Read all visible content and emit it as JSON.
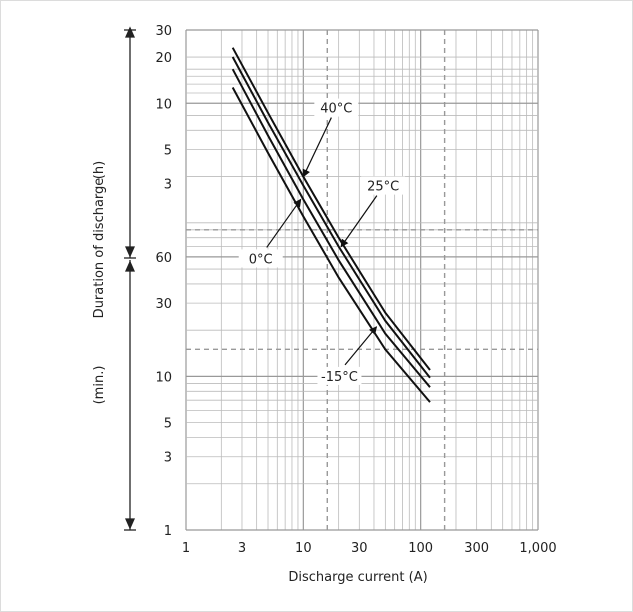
{
  "chart_data": {
    "type": "line",
    "x_scale": "log",
    "y_scale": "log",
    "xlabel": "Discharge current (A)",
    "ylabel": "Duration of discharge",
    "y_unit_upper": "(h)",
    "y_unit_lower": "(min.)",
    "x_ticks": [
      "1",
      "3",
      "10",
      "30",
      "100",
      "300",
      "1,000"
    ],
    "y_ticks_hours": [
      "30",
      "20",
      "10",
      "5",
      "3"
    ],
    "y_ticks_minutes": [
      "60",
      "30",
      "10",
      "5",
      "3",
      "1"
    ],
    "xlim": [
      1,
      1000
    ],
    "ylim_minutes": [
      1,
      1800
    ],
    "grid": true,
    "dashed_x": [
      16,
      160
    ],
    "dashed_y_minutes": [
      90,
      15
    ],
    "series": [
      {
        "name": "40°C",
        "x": [
          2.5,
          5,
          10,
          20,
          50,
          120
        ],
        "y_minutes": [
          1380,
          520,
          200,
          80,
          26,
          11
        ]
      },
      {
        "name": "25°C",
        "x": [
          2.5,
          5,
          10,
          20,
          50,
          120
        ],
        "y_minutes": [
          1200,
          450,
          175,
          70,
          23,
          9.8
        ]
      },
      {
        "name": "0°C",
        "x": [
          2.5,
          5,
          10,
          20,
          50,
          120
        ],
        "y_minutes": [
          1000,
          370,
          142,
          57,
          19,
          8.5
        ]
      },
      {
        "name": "-15°C",
        "x": [
          2.5,
          5,
          10,
          20,
          50,
          120
        ],
        "y_minutes": [
          760,
          285,
          110,
          44,
          15,
          6.8
        ]
      }
    ],
    "annotations": [
      {
        "text": "40°C",
        "series": "40°C",
        "x": 10,
        "y_minutes": 200
      },
      {
        "text": "25°C",
        "series": "25°C",
        "x": 21,
        "y_minutes": 70
      },
      {
        "text": "0°C",
        "series": "0°C",
        "x": 9.5,
        "y_minutes": 142
      },
      {
        "text": "-15°C",
        "series": "-15°C",
        "x": 42,
        "y_minutes": 21
      }
    ]
  },
  "colors": {
    "curve": "#111111",
    "grid": "#bbbbbb",
    "dashed": "#999999"
  }
}
